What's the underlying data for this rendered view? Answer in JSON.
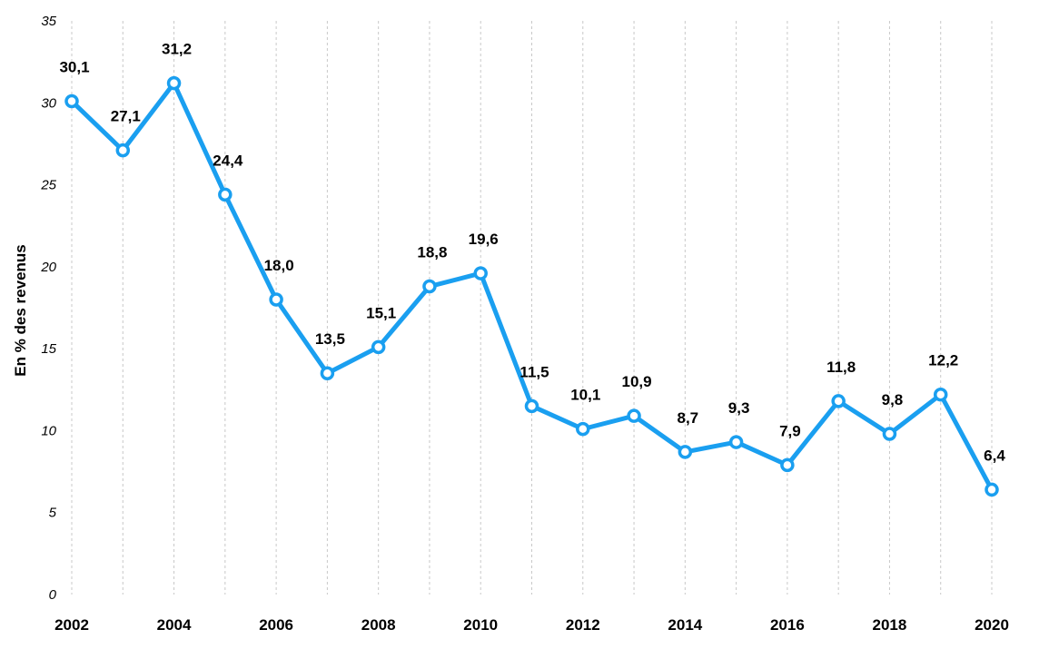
{
  "chart_data": {
    "type": "line",
    "title": "",
    "xlabel": "",
    "ylabel": "En % des revenus",
    "ylim": [
      0,
      35
    ],
    "yticks": [
      "0",
      "5",
      "10",
      "15",
      "20",
      "25",
      "30",
      "35"
    ],
    "xtick_labels": [
      "2002",
      "2004",
      "2006",
      "2008",
      "2010",
      "2012",
      "2014",
      "2016",
      "2018",
      "2020"
    ],
    "grid": "vertical dashed",
    "legend": "none",
    "series_color": "#1a9ff0",
    "x": [
      2002,
      2003,
      2004,
      2005,
      2006,
      2007,
      2008,
      2009,
      2010,
      2011,
      2012,
      2013,
      2014,
      2015,
      2016,
      2017,
      2018,
      2019,
      2020
    ],
    "values": [
      30.1,
      27.1,
      31.2,
      24.4,
      18.0,
      13.5,
      15.1,
      18.8,
      19.6,
      11.5,
      10.1,
      10.9,
      8.7,
      9.3,
      7.9,
      11.8,
      9.8,
      12.2,
      6.4
    ],
    "data_labels": [
      "30,1",
      "27,1",
      "31,2",
      "24,4",
      "18,0",
      "13,5",
      "15,1",
      "18,8",
      "19,6",
      "11,5",
      "10,1",
      "10,9",
      "8,7",
      "9,3",
      "7,9",
      "11,8",
      "9,8",
      "12,2",
      "6,4"
    ]
  }
}
